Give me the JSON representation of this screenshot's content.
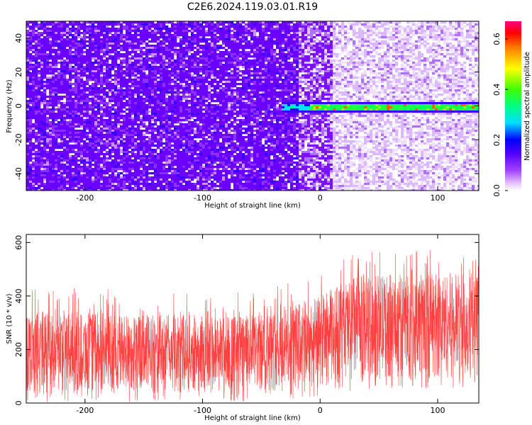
{
  "figure": {
    "title": "C2E6.2024.119.03.01.R19"
  },
  "chart_data": [
    {
      "type": "heatmap",
      "title": "C2E6.2024.119.03.01.R19",
      "xlabel": "Height of straight line (km)",
      "ylabel": "Frequency (Hz)",
      "xlim": [
        -250,
        135
      ],
      "ylim": [
        -50,
        50
      ],
      "xticks": [
        "-200",
        "-100",
        "0",
        "100"
      ],
      "yticks": [
        "-40",
        "-20",
        "0",
        "20",
        "40"
      ],
      "colorbar": {
        "label": "Normalized spectral amplitude",
        "range": [
          0.0,
          0.67
        ],
        "ticks": [
          "0.0",
          "0.2",
          "0.4",
          "0.6"
        ]
      },
      "features": {
        "noise_high_density_until_km": 0,
        "signal_band_center_hz": 0,
        "signal_band_halfwidth_hz": 3,
        "signal_start_km": -35
      }
    },
    {
      "type": "line",
      "xlabel": "Height of straight line (km)",
      "ylabel": "SNR (10 * v/v)",
      "xlim": [
        -250,
        135
      ],
      "ylim": [
        0,
        630
      ],
      "xticks": [
        "-200",
        "-100",
        "0",
        "100"
      ],
      "yticks": [
        "0",
        "200",
        "400",
        "600"
      ],
      "series": [
        {
          "color": "#ff0000",
          "envelope_x": [
            -250,
            -150,
            -50,
            0,
            25,
            50,
            100,
            135
          ],
          "envelope_low": [
            40,
            40,
            40,
            60,
            80,
            90,
            90,
            90
          ],
          "envelope_high": [
            350,
            330,
            330,
            400,
            470,
            480,
            490,
            480
          ]
        }
      ]
    }
  ],
  "colors": {
    "series": "#ff0000",
    "axes": "#000000",
    "signal": "#00dd44"
  }
}
